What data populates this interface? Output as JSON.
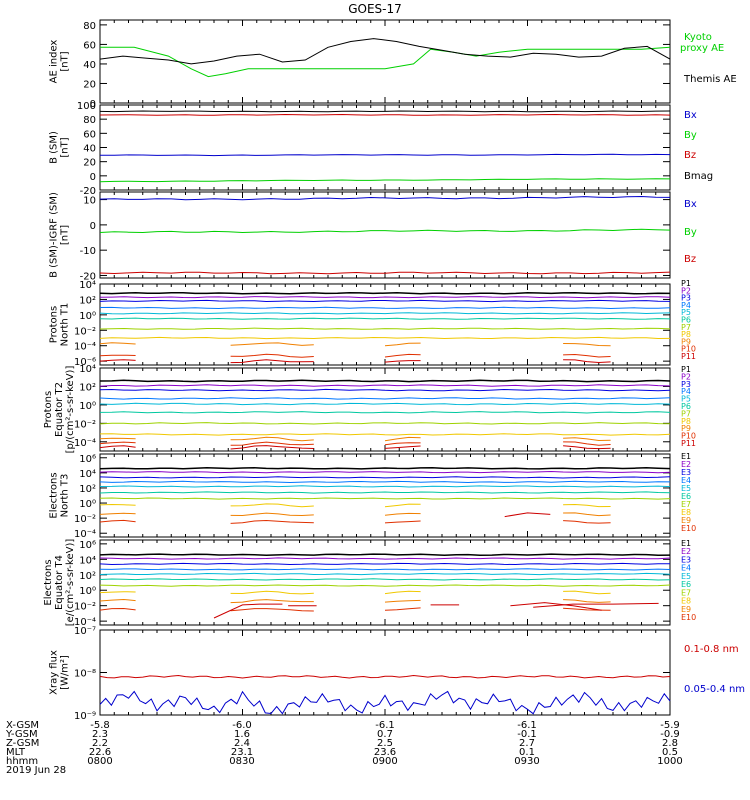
{
  "title": "GOES-17",
  "date": "2019 Jun 28",
  "footer": {
    "labels": [
      "X-GSM",
      "Y-GSM",
      "Z-GSM",
      "MLT",
      "hhmm"
    ],
    "columns": [
      [
        "-5.8",
        "2.3",
        "2.2",
        "22.6",
        "0800"
      ],
      [
        "-6.0",
        "1.6",
        "2.4",
        "23.1",
        "0830"
      ],
      [
        "-6.1",
        "0.7",
        "2.5",
        "23.6",
        "0900"
      ],
      [
        "-6.1",
        "-0.1",
        "2.7",
        "0.1",
        "0930"
      ],
      [
        "-5.9",
        "-0.9",
        "2.8",
        "0.5",
        "1000"
      ]
    ]
  },
  "colors": {
    "black": "#000000",
    "green": "#00d000",
    "blue": "#0000cc",
    "red": "#cc0000",
    "p_levels": [
      "#000000",
      "#8b00c8",
      "#0000e0",
      "#0077ff",
      "#00b8d8",
      "#00c8a0",
      "#9ed200",
      "#f0c800",
      "#f08000",
      "#e03000",
      "#cc0000"
    ]
  },
  "chart_data": [
    {
      "type": "line",
      "ylabel": "AE index\n[nT]",
      "yticks": [
        "0",
        "20",
        "40",
        "60",
        "80"
      ],
      "ylim": [
        0,
        85
      ],
      "x_range_hhmm": [
        "0800",
        "1000"
      ],
      "legend": [
        "Kyoto\nproxy AE",
        "Themis AE"
      ],
      "series": [
        {
          "name": "Kyoto proxy AE",
          "color": "#00d000",
          "x": [
            0,
            0.06,
            0.12,
            0.16,
            0.19,
            0.22,
            0.26,
            0.3,
            0.36,
            0.4,
            0.45,
            0.5,
            0.55,
            0.58,
            0.62,
            0.66,
            0.7,
            0.75,
            0.8,
            0.85,
            0.9,
            0.95,
            1
          ],
          "values": [
            57,
            57,
            48,
            35,
            27,
            30,
            35,
            35,
            35,
            35,
            35,
            35,
            40,
            55,
            52,
            48,
            52,
            55,
            55,
            55,
            55,
            55,
            57
          ]
        },
        {
          "name": "Themis AE",
          "color": "#000000",
          "x": [
            0,
            0.04,
            0.08,
            0.12,
            0.16,
            0.2,
            0.24,
            0.28,
            0.32,
            0.36,
            0.4,
            0.44,
            0.48,
            0.52,
            0.56,
            0.6,
            0.64,
            0.68,
            0.72,
            0.76,
            0.8,
            0.84,
            0.88,
            0.92,
            0.96,
            1
          ],
          "values": [
            45,
            48,
            46,
            44,
            40,
            43,
            48,
            50,
            42,
            44,
            57,
            63,
            66,
            63,
            58,
            54,
            50,
            48,
            47,
            51,
            50,
            47,
            48,
            56,
            58,
            45
          ]
        }
      ]
    },
    {
      "type": "line",
      "ylabel": "B (SM)\n[nT]",
      "yticks": [
        "-20",
        "0",
        "20",
        "40",
        "60",
        "80",
        "100"
      ],
      "ylim": [
        -20,
        100
      ],
      "legend": [
        "Bx",
        "By",
        "Bz",
        "Bmag"
      ],
      "series": [
        {
          "name": "Bx",
          "color": "#0000cc",
          "x": [
            0,
            1
          ],
          "values": [
            29,
            30
          ]
        },
        {
          "name": "By",
          "color": "#00d000",
          "x": [
            0,
            1
          ],
          "values": [
            -8,
            -4
          ]
        },
        {
          "name": "Bz",
          "color": "#cc0000",
          "x": [
            0,
            1
          ],
          "values": [
            86,
            86
          ]
        },
        {
          "name": "Bmag",
          "color": "#000000",
          "x": [
            0,
            1
          ],
          "values": [
            91,
            91
          ]
        }
      ]
    },
    {
      "type": "line",
      "ylabel": "B (SM)-IGRF (SM)\n[nT]",
      "yticks": [
        "-20",
        "-10",
        "0",
        "10"
      ],
      "ylim": [
        -21,
        13
      ],
      "legend": [
        "Bx",
        "By",
        "Bz"
      ],
      "series": [
        {
          "name": "Bx",
          "color": "#0000cc",
          "x": [
            0,
            1
          ],
          "values": [
            10,
            11
          ]
        },
        {
          "name": "By",
          "color": "#00d000",
          "x": [
            0,
            1
          ],
          "values": [
            -3,
            -2
          ]
        },
        {
          "name": "Bz",
          "color": "#cc0000",
          "x": [
            0,
            1
          ],
          "values": [
            -19,
            -19
          ]
        }
      ]
    },
    {
      "type": "line",
      "ylabel": "Protons\nNorth T1",
      "yticks": [
        "10⁻⁶",
        "10⁻⁴",
        "10⁻²",
        "10⁰",
        "10²",
        "10⁴"
      ],
      "ylim_log10": [
        -6.5,
        4
      ],
      "legend": [
        "P1",
        "P2",
        "P3",
        "P4",
        "P5",
        "P6",
        "P7",
        "P8",
        "P9",
        "P10",
        "P11"
      ],
      "log10_levels": [
        2.8,
        2.3,
        1.8,
        0.9,
        0.2,
        -0.5,
        -1.8,
        -3.0,
        -3.8,
        -5.3,
        -6.0
      ]
    },
    {
      "type": "line",
      "ylabel": "Protons\nEquator T2\n[p/(cm²-s-sr-keV)]",
      "yticks": [
        "10⁻⁴",
        "10⁻²",
        "10⁰",
        "10²",
        "10⁴"
      ],
      "ylim_log10": [
        -5,
        4
      ],
      "legend": [
        "P1",
        "P2",
        "P3",
        "P4",
        "P5",
        "P6",
        "P7",
        "P8",
        "P9",
        "P10",
        "P11"
      ],
      "log10_levels": [
        2.6,
        2.1,
        1.6,
        0.7,
        0.1,
        -0.8,
        -2.0,
        -3.2,
        -3.7,
        -4.2,
        -4.6
      ]
    },
    {
      "type": "line",
      "ylabel": "Electrons\nNorth T3",
      "yticks": [
        "10⁻⁴",
        "10⁻²",
        "10⁰",
        "10²",
        "10⁴",
        "10⁶"
      ],
      "ylim_log10": [
        -4.5,
        6.5
      ],
      "legend": [
        "E1",
        "E2",
        "E3",
        "E4",
        "E5",
        "E6",
        "E7",
        "E8",
        "E9",
        "E10"
      ],
      "log10_levels": [
        4.6,
        4.1,
        3.4,
        2.8,
        2.2,
        1.4,
        0.6,
        -0.3,
        -1.5,
        -2.5
      ]
    },
    {
      "type": "line",
      "ylabel": "Electrons\nEquator T4\n[e/(cm²-s-sr-keV)]",
      "yticks": [
        "10⁻⁴",
        "10⁻²",
        "10⁰",
        "10²",
        "10⁴",
        "10⁶"
      ],
      "ylim_log10": [
        -4.5,
        6.5
      ],
      "legend": [
        "E1",
        "E2",
        "E3",
        "E4",
        "E5",
        "E6",
        "E7",
        "E8",
        "E9",
        "E10"
      ],
      "log10_levels": [
        4.6,
        4.1,
        3.4,
        2.7,
        2.1,
        1.4,
        0.6,
        -0.3,
        -1.4,
        -2.5
      ]
    },
    {
      "type": "line",
      "ylabel": "Xray flux\n[W/m²]",
      "yticks": [
        "10⁻⁹",
        "10⁻⁸",
        "10⁻⁷"
      ],
      "ylim_log10": [
        -9,
        -7
      ],
      "legend": [
        "0.1-0.8 nm",
        "0.05-0.4 nm"
      ],
      "series": [
        {
          "name": "0.1-0.8 nm",
          "color": "#cc0000",
          "x": [
            0,
            1
          ],
          "log10_values": [
            -8.1,
            -8.1
          ]
        },
        {
          "name": "0.05-0.4 nm",
          "color": "#0000cc",
          "x": [
            0,
            0.05,
            0.1,
            0.15,
            0.2,
            0.25,
            0.3,
            0.35,
            0.4,
            0.45,
            0.5,
            0.55,
            0.6,
            0.65,
            0.7,
            0.75,
            0.8,
            0.85,
            0.9,
            0.95,
            1
          ],
          "log10_values": [
            -8.75,
            -8.5,
            -8.8,
            -8.6,
            -8.9,
            -8.55,
            -8.95,
            -8.7,
            -8.6,
            -8.9,
            -8.65,
            -8.8,
            -8.5,
            -8.75,
            -8.6,
            -8.9,
            -8.7,
            -8.55,
            -8.85,
            -8.7,
            -8.6
          ]
        }
      ]
    }
  ]
}
